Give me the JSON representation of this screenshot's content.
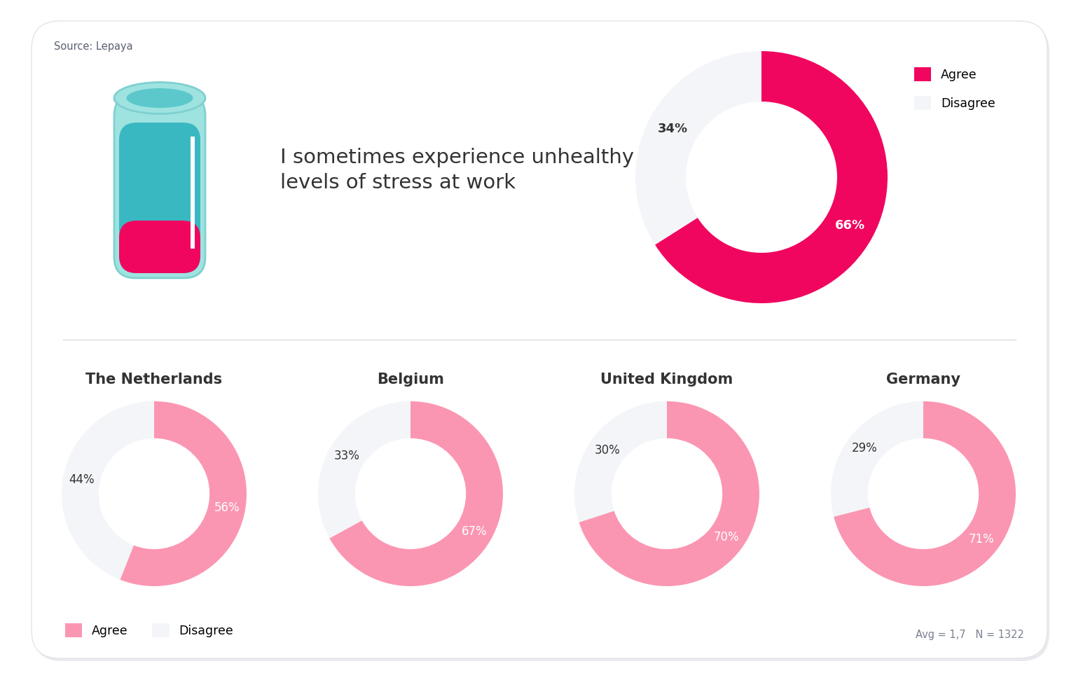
{
  "source": "Source: Lepaya",
  "footnote": "Avg = 1,7   N = 1322",
  "chart_data": [
    {
      "type": "pie",
      "title": "I sometimes experience unhealthy levels of stress at work",
      "categories": [
        "Agree",
        "Disagree"
      ],
      "values": [
        66,
        34
      ],
      "value_labels": [
        "66%",
        "34%"
      ],
      "colors": [
        "#f0065f",
        "#f3f5f8"
      ],
      "data_labels": true,
      "legend": "upper left"
    },
    {
      "type": "pie",
      "title": "The Netherlands",
      "categories": [
        "Agree",
        "Disagree"
      ],
      "values": [
        56,
        44
      ],
      "value_labels": [
        "56%",
        "44%"
      ],
      "colors": [
        "#fb96b2",
        "#f3f5f8"
      ],
      "data_labels": true,
      "legend": "lower left"
    },
    {
      "type": "pie",
      "title": "Belgium",
      "categories": [
        "Agree",
        "Disagree"
      ],
      "values": [
        67,
        33
      ],
      "value_labels": [
        "67%",
        "33%"
      ],
      "colors": [
        "#fb96b2",
        "#f3f5f8"
      ],
      "data_labels": true
    },
    {
      "type": "pie",
      "title": "United Kingdom",
      "categories": [
        "Agree",
        "Disagree"
      ],
      "values": [
        70,
        30
      ],
      "value_labels": [
        "70%",
        "30%"
      ],
      "colors": [
        "#fb96b2",
        "#f3f5f8"
      ],
      "data_labels": true
    },
    {
      "type": "pie",
      "title": "Germany",
      "categories": [
        "Agree",
        "Disagree"
      ],
      "values": [
        71,
        29
      ],
      "value_labels": [
        "71%",
        "29%"
      ],
      "colors": [
        "#fb96b2",
        "#f3f5f8"
      ],
      "data_labels": true
    }
  ]
}
